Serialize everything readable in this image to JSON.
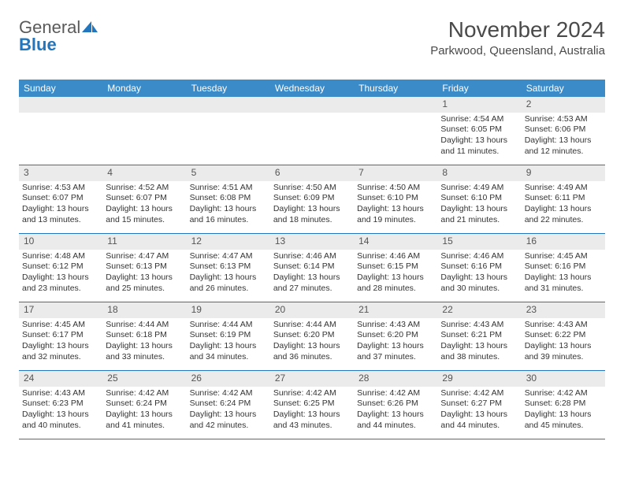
{
  "logo": {
    "text1": "General",
    "text2": "Blue"
  },
  "title": "November 2024",
  "location": "Parkwood, Queensland, Australia",
  "colors": {
    "header_bg": "#3b8bc9",
    "border": "#2176bd",
    "daynum_bg": "#ebebeb",
    "text": "#333333",
    "logo_gray": "#5a5a5a",
    "logo_blue": "#2176bd"
  },
  "weekdays": [
    "Sunday",
    "Monday",
    "Tuesday",
    "Wednesday",
    "Thursday",
    "Friday",
    "Saturday"
  ],
  "weeks": [
    [
      null,
      null,
      null,
      null,
      null,
      {
        "n": "1",
        "sr": "Sunrise: 4:54 AM",
        "ss": "Sunset: 6:05 PM",
        "d1": "Daylight: 13 hours",
        "d2": "and 11 minutes."
      },
      {
        "n": "2",
        "sr": "Sunrise: 4:53 AM",
        "ss": "Sunset: 6:06 PM",
        "d1": "Daylight: 13 hours",
        "d2": "and 12 minutes."
      }
    ],
    [
      {
        "n": "3",
        "sr": "Sunrise: 4:53 AM",
        "ss": "Sunset: 6:07 PM",
        "d1": "Daylight: 13 hours",
        "d2": "and 13 minutes."
      },
      {
        "n": "4",
        "sr": "Sunrise: 4:52 AM",
        "ss": "Sunset: 6:07 PM",
        "d1": "Daylight: 13 hours",
        "d2": "and 15 minutes."
      },
      {
        "n": "5",
        "sr": "Sunrise: 4:51 AM",
        "ss": "Sunset: 6:08 PM",
        "d1": "Daylight: 13 hours",
        "d2": "and 16 minutes."
      },
      {
        "n": "6",
        "sr": "Sunrise: 4:50 AM",
        "ss": "Sunset: 6:09 PM",
        "d1": "Daylight: 13 hours",
        "d2": "and 18 minutes."
      },
      {
        "n": "7",
        "sr": "Sunrise: 4:50 AM",
        "ss": "Sunset: 6:10 PM",
        "d1": "Daylight: 13 hours",
        "d2": "and 19 minutes."
      },
      {
        "n": "8",
        "sr": "Sunrise: 4:49 AM",
        "ss": "Sunset: 6:10 PM",
        "d1": "Daylight: 13 hours",
        "d2": "and 21 minutes."
      },
      {
        "n": "9",
        "sr": "Sunrise: 4:49 AM",
        "ss": "Sunset: 6:11 PM",
        "d1": "Daylight: 13 hours",
        "d2": "and 22 minutes."
      }
    ],
    [
      {
        "n": "10",
        "sr": "Sunrise: 4:48 AM",
        "ss": "Sunset: 6:12 PM",
        "d1": "Daylight: 13 hours",
        "d2": "and 23 minutes."
      },
      {
        "n": "11",
        "sr": "Sunrise: 4:47 AM",
        "ss": "Sunset: 6:13 PM",
        "d1": "Daylight: 13 hours",
        "d2": "and 25 minutes."
      },
      {
        "n": "12",
        "sr": "Sunrise: 4:47 AM",
        "ss": "Sunset: 6:13 PM",
        "d1": "Daylight: 13 hours",
        "d2": "and 26 minutes."
      },
      {
        "n": "13",
        "sr": "Sunrise: 4:46 AM",
        "ss": "Sunset: 6:14 PM",
        "d1": "Daylight: 13 hours",
        "d2": "and 27 minutes."
      },
      {
        "n": "14",
        "sr": "Sunrise: 4:46 AM",
        "ss": "Sunset: 6:15 PM",
        "d1": "Daylight: 13 hours",
        "d2": "and 28 minutes."
      },
      {
        "n": "15",
        "sr": "Sunrise: 4:46 AM",
        "ss": "Sunset: 6:16 PM",
        "d1": "Daylight: 13 hours",
        "d2": "and 30 minutes."
      },
      {
        "n": "16",
        "sr": "Sunrise: 4:45 AM",
        "ss": "Sunset: 6:16 PM",
        "d1": "Daylight: 13 hours",
        "d2": "and 31 minutes."
      }
    ],
    [
      {
        "n": "17",
        "sr": "Sunrise: 4:45 AM",
        "ss": "Sunset: 6:17 PM",
        "d1": "Daylight: 13 hours",
        "d2": "and 32 minutes."
      },
      {
        "n": "18",
        "sr": "Sunrise: 4:44 AM",
        "ss": "Sunset: 6:18 PM",
        "d1": "Daylight: 13 hours",
        "d2": "and 33 minutes."
      },
      {
        "n": "19",
        "sr": "Sunrise: 4:44 AM",
        "ss": "Sunset: 6:19 PM",
        "d1": "Daylight: 13 hours",
        "d2": "and 34 minutes."
      },
      {
        "n": "20",
        "sr": "Sunrise: 4:44 AM",
        "ss": "Sunset: 6:20 PM",
        "d1": "Daylight: 13 hours",
        "d2": "and 36 minutes."
      },
      {
        "n": "21",
        "sr": "Sunrise: 4:43 AM",
        "ss": "Sunset: 6:20 PM",
        "d1": "Daylight: 13 hours",
        "d2": "and 37 minutes."
      },
      {
        "n": "22",
        "sr": "Sunrise: 4:43 AM",
        "ss": "Sunset: 6:21 PM",
        "d1": "Daylight: 13 hours",
        "d2": "and 38 minutes."
      },
      {
        "n": "23",
        "sr": "Sunrise: 4:43 AM",
        "ss": "Sunset: 6:22 PM",
        "d1": "Daylight: 13 hours",
        "d2": "and 39 minutes."
      }
    ],
    [
      {
        "n": "24",
        "sr": "Sunrise: 4:43 AM",
        "ss": "Sunset: 6:23 PM",
        "d1": "Daylight: 13 hours",
        "d2": "and 40 minutes."
      },
      {
        "n": "25",
        "sr": "Sunrise: 4:42 AM",
        "ss": "Sunset: 6:24 PM",
        "d1": "Daylight: 13 hours",
        "d2": "and 41 minutes."
      },
      {
        "n": "26",
        "sr": "Sunrise: 4:42 AM",
        "ss": "Sunset: 6:24 PM",
        "d1": "Daylight: 13 hours",
        "d2": "and 42 minutes."
      },
      {
        "n": "27",
        "sr": "Sunrise: 4:42 AM",
        "ss": "Sunset: 6:25 PM",
        "d1": "Daylight: 13 hours",
        "d2": "and 43 minutes."
      },
      {
        "n": "28",
        "sr": "Sunrise: 4:42 AM",
        "ss": "Sunset: 6:26 PM",
        "d1": "Daylight: 13 hours",
        "d2": "and 44 minutes."
      },
      {
        "n": "29",
        "sr": "Sunrise: 4:42 AM",
        "ss": "Sunset: 6:27 PM",
        "d1": "Daylight: 13 hours",
        "d2": "and 44 minutes."
      },
      {
        "n": "30",
        "sr": "Sunrise: 4:42 AM",
        "ss": "Sunset: 6:28 PM",
        "d1": "Daylight: 13 hours",
        "d2": "and 45 minutes."
      }
    ]
  ]
}
